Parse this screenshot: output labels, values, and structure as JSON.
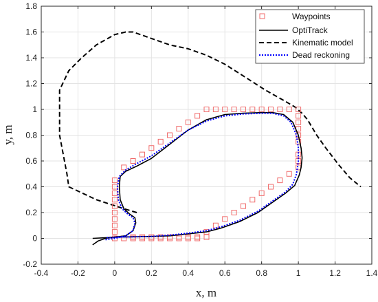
{
  "chart_data": {
    "type": "line",
    "title": "",
    "xlabel": "x, m",
    "ylabel": "y, m",
    "xlim": [
      -0.4,
      1.4
    ],
    "ylim": [
      -0.2,
      1.8
    ],
    "xticks": [
      -0.4,
      -0.2,
      0,
      0.2,
      0.4,
      0.6,
      0.8,
      1,
      1.2,
      1.4
    ],
    "xtick_labels": [
      "-0.4",
      "-0.2",
      "0",
      "0.2",
      "0.4",
      "0.6",
      "0.8",
      "1",
      "1.2",
      "1.4"
    ],
    "yticks": [
      -0.2,
      0,
      0.2,
      0.4,
      0.6,
      0.8,
      1,
      1.2,
      1.4,
      1.6,
      1.8
    ],
    "ytick_labels": [
      "-0.2",
      "0",
      "0.2",
      "0.4",
      "0.6",
      "0.8",
      "1",
      "1.2",
      "1.4",
      "1.6",
      "1.8"
    ],
    "grid": true,
    "legend_position": "top-right",
    "series": [
      {
        "name": "Waypoints",
        "kind": "marker",
        "marker": "square",
        "color": "#f06a6a",
        "x": [
          0,
          0,
          0,
          0,
          0,
          0,
          0,
          0,
          0,
          0,
          0.05,
          0.1,
          0.15,
          0.2,
          0.25,
          0.3,
          0.35,
          0.4,
          0.45,
          0.5,
          0.55,
          0.6,
          0.65,
          0.7,
          0.75,
          0.8,
          0.85,
          0.9,
          0.95,
          1.0,
          1.0,
          1.0,
          1.0,
          1.0,
          1.0,
          1.0,
          1.0,
          1.0,
          0.95,
          0.9,
          0.85,
          0.8,
          0.75,
          0.7,
          0.65,
          0.6,
          0.55,
          0.5,
          0.45,
          0.4,
          0.35,
          0.3,
          0.25,
          0.2,
          0.15,
          0.1,
          0.05,
          0.1,
          0.15,
          0.2,
          0.25,
          0.3,
          0.35,
          0.4,
          0.45,
          0.5
        ],
        "y": [
          0,
          0.05,
          0.1,
          0.15,
          0.2,
          0.25,
          0.3,
          0.35,
          0.4,
          0.45,
          0.55,
          0.6,
          0.65,
          0.7,
          0.75,
          0.8,
          0.85,
          0.9,
          0.95,
          1.0,
          1.0,
          1.0,
          1.0,
          1.0,
          1.0,
          1.0,
          1.0,
          1.0,
          1.0,
          1.0,
          0.95,
          0.9,
          0.85,
          0.8,
          0.75,
          0.65,
          0.6,
          0.55,
          0.5,
          0.45,
          0.4,
          0.35,
          0.3,
          0.25,
          0.2,
          0.15,
          0.1,
          0.05,
          0,
          0,
          0,
          0,
          0,
          0,
          0,
          0,
          0,
          0.01,
          0.01,
          0.01,
          0.01,
          0.01,
          0.01,
          0.01,
          0.01,
          0.01
        ]
      },
      {
        "name": "OptiTrack",
        "kind": "line",
        "dash": "solid",
        "color": "#000000",
        "x": [
          -0.12,
          -0.09,
          -0.05,
          0,
          0.06,
          0.1,
          0.115,
          0.11,
          0.08,
          0.05,
          0.03,
          0.025,
          0.03,
          0.06,
          0.12,
          0.2,
          0.3,
          0.4,
          0.5,
          0.6,
          0.7,
          0.8,
          0.86,
          0.92,
          0.97,
          1.0,
          1.015,
          1.02,
          1.02,
          1.015,
          1.005,
          0.98,
          0.93,
          0.86,
          0.78,
          0.68,
          0.58,
          0.5,
          0.4,
          0.3,
          0.2,
          0.1,
          0.02,
          -0.05,
          -0.12
        ],
        "y": [
          -0.05,
          -0.02,
          0,
          0.01,
          0.02,
          0.06,
          0.12,
          0.16,
          0.19,
          0.23,
          0.3,
          0.4,
          0.48,
          0.52,
          0.56,
          0.62,
          0.73,
          0.84,
          0.92,
          0.96,
          0.97,
          0.975,
          0.975,
          0.96,
          0.9,
          0.8,
          0.7,
          0.63,
          0.62,
          0.55,
          0.49,
          0.41,
          0.35,
          0.28,
          0.2,
          0.13,
          0.08,
          0.05,
          0.035,
          0.02,
          0.015,
          0.012,
          0.01,
          0.005,
          0
        ]
      },
      {
        "name": "Kinematic model",
        "kind": "line",
        "dash": "dashed",
        "color": "#000000",
        "x": [
          0.12,
          0.05,
          -0.1,
          -0.25,
          -0.26,
          -0.3,
          -0.3,
          -0.25,
          -0.18,
          -0.1,
          0.0,
          0.06,
          0.1,
          0.2,
          0.3,
          0.4,
          0.5,
          0.6,
          0.7,
          0.82,
          0.92,
          0.98,
          1.02,
          1.05,
          1.1,
          1.15,
          1.22,
          1.28,
          1.34
        ],
        "y": [
          0.2,
          0.23,
          0.3,
          0.4,
          0.5,
          0.8,
          1.15,
          1.3,
          1.4,
          1.5,
          1.58,
          1.6,
          1.6,
          1.55,
          1.5,
          1.47,
          1.42,
          1.35,
          1.26,
          1.15,
          1.07,
          1.02,
          0.97,
          0.92,
          0.8,
          0.7,
          0.57,
          0.47,
          0.4
        ]
      },
      {
        "name": "Dead reckoning",
        "kind": "line",
        "dash": "dotted",
        "color": "#0000ff",
        "x": [
          -0.05,
          0,
          0.06,
          0.1,
          0.11,
          0.1,
          0.07,
          0.04,
          0.02,
          0.015,
          0.025,
          0.06,
          0.12,
          0.2,
          0.3,
          0.4,
          0.5,
          0.6,
          0.7,
          0.8,
          0.86,
          0.92,
          0.96,
          0.99,
          1.0,
          1.0,
          0.99,
          0.97,
          0.93,
          0.86,
          0.78,
          0.68,
          0.58,
          0.5,
          0.4,
          0.3,
          0.2,
          0.1,
          0.02,
          -0.05
        ],
        "y": [
          -0.01,
          0,
          0.02,
          0.06,
          0.12,
          0.16,
          0.19,
          0.23,
          0.3,
          0.4,
          0.48,
          0.53,
          0.58,
          0.64,
          0.74,
          0.84,
          0.91,
          0.95,
          0.965,
          0.97,
          0.97,
          0.95,
          0.9,
          0.8,
          0.7,
          0.6,
          0.5,
          0.42,
          0.36,
          0.29,
          0.21,
          0.14,
          0.09,
          0.06,
          0.04,
          0.025,
          0.015,
          0.012,
          0.01,
          0.005
        ]
      }
    ]
  }
}
